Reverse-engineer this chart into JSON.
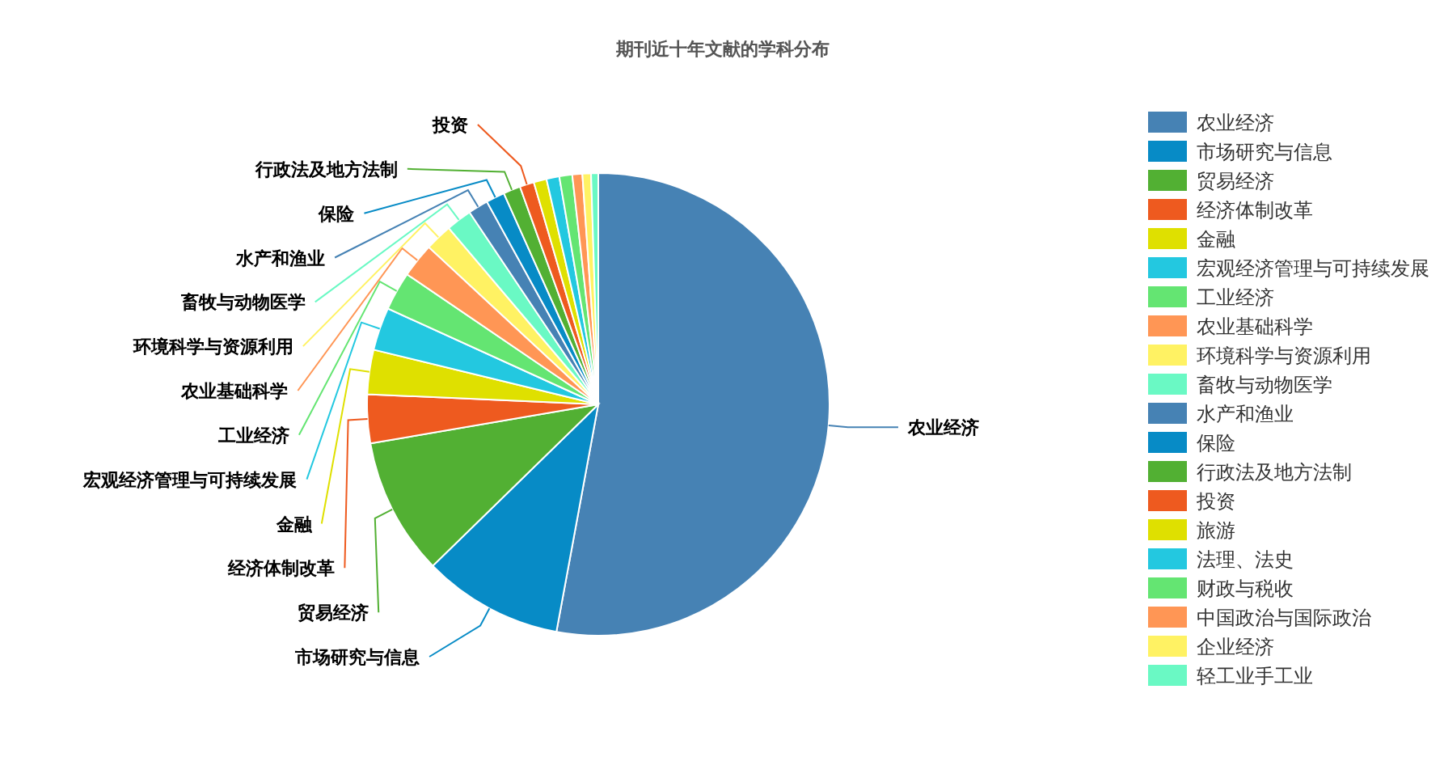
{
  "chart_data": {
    "type": "pie",
    "title": "期刊近十年文献的学科分布",
    "categories": [
      "农业经济",
      "市场研究与信息",
      "贸易经济",
      "经济体制改革",
      "金融",
      "宏观经济管理与可持续发展",
      "工业经济",
      "农业基础科学",
      "环境科学与资源利用",
      "畜牧与动物医学",
      "水产和渔业",
      "保险",
      "行政法及地方法制",
      "投资",
      "旅游",
      "法理、法史",
      "财政与税收",
      "中国政治与国际政治",
      "企业经济",
      "轻工业手工业"
    ],
    "values": [
      52.9,
      9.8,
      9.6,
      3.4,
      3.1,
      3.0,
      2.7,
      2.4,
      1.9,
      1.8,
      1.4,
      1.3,
      1.2,
      1.0,
      0.9,
      0.9,
      0.9,
      0.7,
      0.6,
      0.5
    ],
    "colors": [
      "#4682b4",
      "#078bc6",
      "#52b033",
      "#ee5a1f",
      "#dfe000",
      "#23c8e0",
      "#64e572",
      "#ff9655",
      "#fff263",
      "#6af9c4",
      "#4682b4",
      "#078bc6",
      "#52b033",
      "#ee5a1f",
      "#dfe000",
      "#23c8e0",
      "#64e572",
      "#ff9655",
      "#fff263",
      "#6af9c4"
    ],
    "legend": "right"
  }
}
